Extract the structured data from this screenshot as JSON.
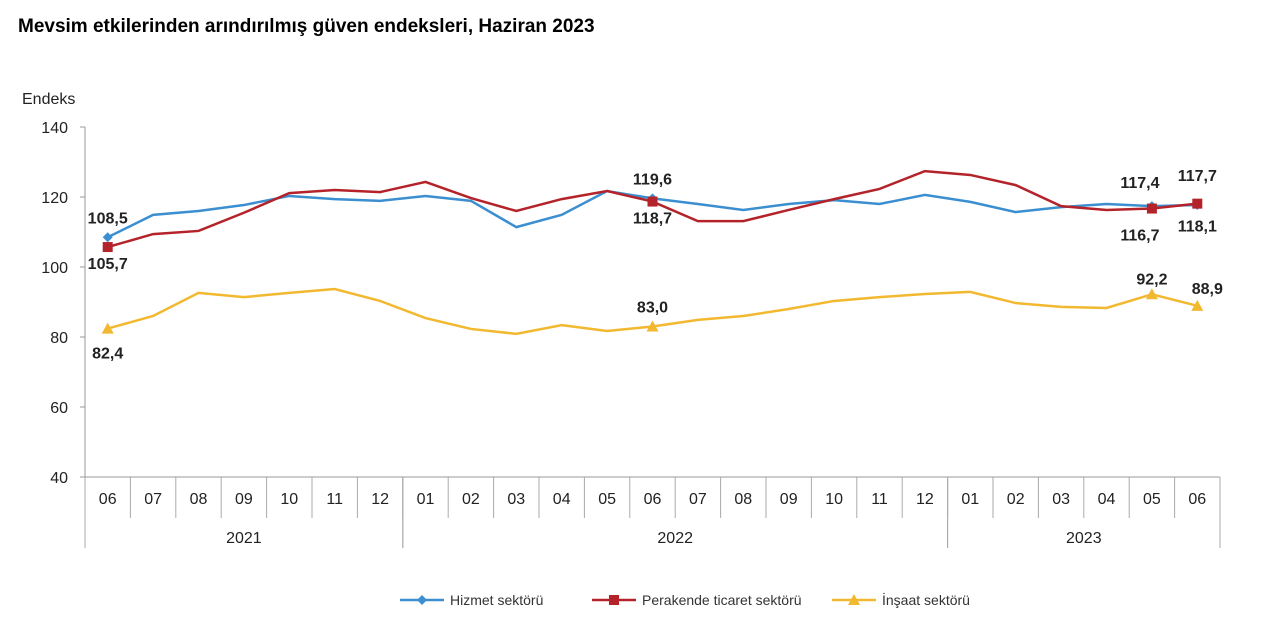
{
  "chart_data": {
    "type": "line",
    "title": "Mevsim etkilerinden arındırılmış güven endeksleri, Haziran 2023",
    "ylabel": "Endeks",
    "ylim": [
      40,
      140
    ],
    "yticks": [
      40,
      60,
      80,
      100,
      120,
      140
    ],
    "grid": false,
    "legend": "bottom",
    "categories": [
      "06",
      "07",
      "08",
      "09",
      "10",
      "11",
      "12",
      "01",
      "02",
      "03",
      "04",
      "05",
      "06",
      "07",
      "08",
      "09",
      "10",
      "11",
      "12",
      "01",
      "02",
      "03",
      "04",
      "05",
      "06"
    ],
    "years": [
      {
        "label": "2021",
        "start": 0,
        "end": 6
      },
      {
        "label": "2022",
        "start": 7,
        "end": 18
      },
      {
        "label": "2023",
        "start": 19,
        "end": 24
      }
    ],
    "series": [
      {
        "name": "Hizmet sektörü",
        "color": "#3b8fd0",
        "marker": "diamond",
        "values": [
          108.5,
          114.9,
          116.0,
          117.7,
          120.3,
          119.4,
          118.9,
          120.3,
          118.9,
          111.4,
          114.9,
          121.7,
          119.6,
          118.0,
          116.3,
          118.0,
          119.1,
          118.0,
          120.6,
          118.6,
          115.7,
          117.1,
          118.0,
          117.4,
          117.7
        ],
        "labels": {
          "0": "108,5",
          "12": "119,6",
          "23": "117,4",
          "24": "117,7"
        }
      },
      {
        "name": "Perakende ticaret sektörü",
        "color": "#b4232a",
        "marker": "square",
        "values": [
          105.7,
          109.4,
          110.3,
          115.5,
          121.1,
          122.0,
          121.4,
          124.3,
          119.7,
          116.0,
          119.4,
          121.7,
          118.7,
          113.1,
          113.1,
          116.3,
          119.4,
          122.3,
          127.4,
          126.3,
          123.4,
          117.4,
          116.3,
          116.7,
          118.1
        ],
        "labels": {
          "0": "105,7",
          "12": "118,7",
          "23": "116,7",
          "24": "118,1"
        }
      },
      {
        "name": "İnşaat sektörü",
        "color": "#f2b830",
        "marker": "triangle",
        "values": [
          82.4,
          86.0,
          92.6,
          91.4,
          92.6,
          93.7,
          90.3,
          85.4,
          82.3,
          80.9,
          83.4,
          81.7,
          83.0,
          84.9,
          86.0,
          88.0,
          90.3,
          91.4,
          92.3,
          92.9,
          89.7,
          88.6,
          88.3,
          92.2,
          88.9
        ],
        "labels": {
          "0": "82,4",
          "12": "83,0",
          "23": "92,2",
          "24": "88,9"
        }
      }
    ]
  }
}
